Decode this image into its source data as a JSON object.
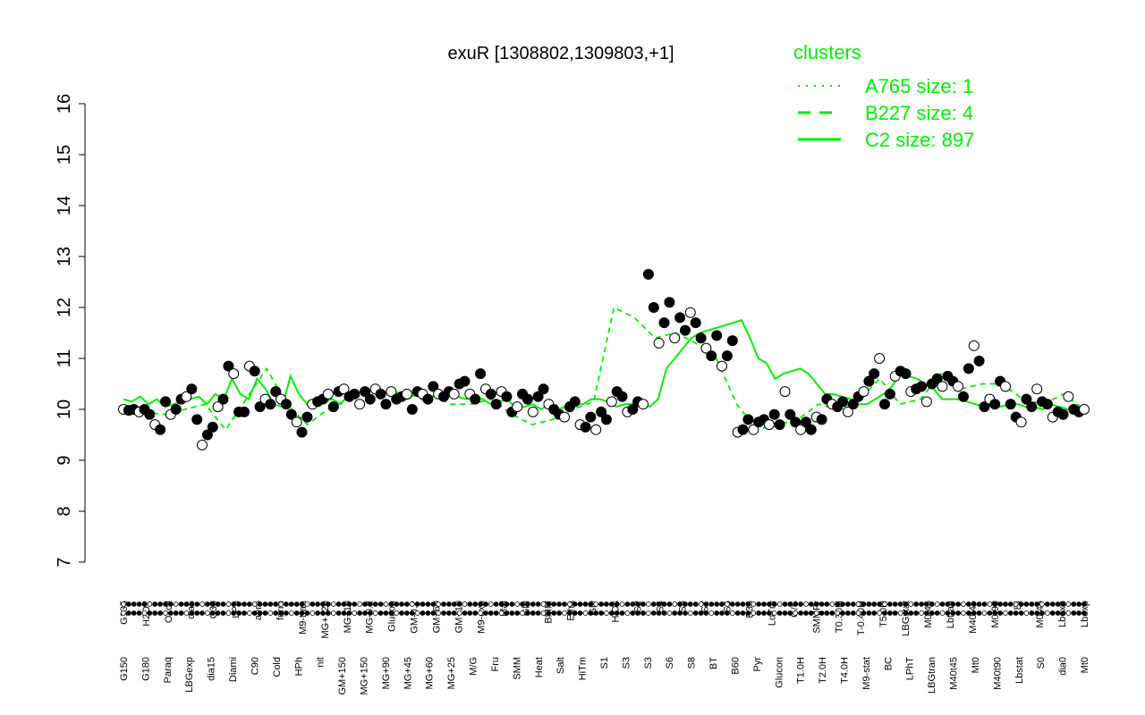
{
  "chart_data": {
    "type": "line",
    "title": "exuR [1308802,1309803,+1]",
    "xlabel": "",
    "ylabel": "",
    "ylim": [
      7,
      16
    ],
    "yticks": [
      7,
      8,
      9,
      10,
      11,
      12,
      13,
      14,
      15,
      16
    ],
    "grid": false,
    "legend": {
      "title": "clusters",
      "position": "top-right",
      "entries": [
        {
          "label": "A765 size: 1",
          "style": "dotted"
        },
        {
          "label": "B227 size: 4",
          "style": "dashed"
        },
        {
          "label": "C2 size: 897",
          "style": "solid"
        }
      ]
    },
    "x_top_labels": [
      "G150",
      "G180",
      "Paraq",
      "LBGexp",
      "dia15",
      "Diami",
      "C90",
      "Cold",
      "HPh",
      "nit",
      "GM+150",
      "MG+150",
      "MG+90",
      "MG+45",
      "MG+60",
      "MG+25",
      "M/G",
      "Fru",
      "SMM",
      "Heat",
      "Salt",
      "HiTm",
      "S1",
      "S3",
      "S3",
      "S6",
      "S8",
      "BT",
      "B60",
      "Pyr",
      "Glucon",
      "T1.0H",
      "T2.0H",
      "T4.0H",
      "M9-stat",
      "BC",
      "LPhT",
      "LBGtran",
      "M40t45",
      "Mt0",
      "M40t90",
      "Lbstat",
      "S0",
      "dia0",
      "Mt0"
    ],
    "x_bottom_labels": [
      "G135",
      "H2O2",
      "Oxctl",
      "dia5",
      "C30",
      "LPh",
      "aero",
      "ferm",
      "M9-tran",
      "MG+120",
      "MG+10",
      "MG-0.2",
      "Glucon",
      "GM-0.2",
      "GM+60",
      "GM+10",
      "M9-exp",
      "Mal",
      "Glu",
      "BMM",
      "Etha",
      "Gly",
      "HiOs",
      "S2",
      "S4",
      "S5",
      "S7",
      "S6",
      "B36",
      "LoTm",
      "G/S",
      "SMMPr",
      "T0.30H",
      "T-0.40H",
      "T5.0H",
      "LBGstat",
      "M0t45",
      "Lbtran",
      "M40t45",
      "M0t90",
      "BI",
      "M0t45",
      "Lbexp",
      "Lbexp"
    ],
    "series": [
      {
        "name": "C2 size: 897",
        "style": "solid",
        "values": [
          10.2,
          10.15,
          10.25,
          10.1,
          10.2,
          10.05,
          10.1,
          10.15,
          10.2,
          10.25,
          10.1,
          10.3,
          10.2,
          10.6,
          10.3,
          10.2,
          10.6,
          10.4,
          10.1,
          10.05,
          10.65,
          10.3,
          10.1,
          10.2,
          10.15,
          10.2,
          10.1,
          10.3,
          10.35,
          10.3,
          10.4,
          10.35,
          10.3,
          10.25,
          10.2,
          10.3,
          10.15,
          10.25,
          10.3,
          10.3,
          10.25,
          10.2,
          10.25,
          10.2,
          10.1,
          10.15,
          10.2,
          10.0,
          10.05,
          10.1,
          10.0,
          10.1,
          10.0,
          10.05,
          10.1,
          10.1,
          10.2,
          10.2,
          10.15,
          10.05,
          10.1,
          10.1,
          10.15,
          10.05,
          10.2,
          10.8,
          11.0,
          11.2,
          11.4,
          11.5,
          11.55,
          11.6,
          11.65,
          11.7,
          11.75,
          11.4,
          11.0,
          10.9,
          10.6,
          10.7,
          10.75,
          10.8,
          10.7,
          10.5,
          10.3,
          10.3,
          10.25,
          10.2,
          10.1,
          10.1,
          10.2,
          10.3,
          10.45,
          10.7,
          10.65,
          10.6,
          10.5,
          10.4,
          10.2,
          10.2,
          10.2,
          10.15,
          10.1,
          10.05,
          10.1,
          10.05,
          10.1,
          10.1,
          10.05,
          10.05,
          10.0,
          10.1,
          10.05,
          10.0,
          10.0,
          10.0
        ]
      },
      {
        "name": "B227 size: 4",
        "style": "dashed",
        "values": [
          10.0,
          9.95,
          9.9,
          10.0,
          10.1,
          9.6,
          10.2,
          10.8,
          10.1,
          9.7,
          10.0,
          10.2,
          10.3,
          10.35,
          10.3,
          10.3,
          10.1,
          10.1,
          10.2,
          9.9,
          9.7,
          9.8,
          10.0,
          10.15,
          12.0,
          11.8,
          11.4,
          11.5,
          11.3,
          11.0,
          10.1,
          9.6,
          9.7,
          9.8,
          10.1,
          10.0,
          10.2,
          10.6,
          10.1,
          10.2,
          10.7,
          10.4,
          10.5,
          10.5,
          10.2,
          10.1,
          10.3,
          10.0
        ]
      }
    ],
    "points": [
      {
        "x": 1,
        "y": 10.0
      },
      {
        "x": 2,
        "y": 9.98
      },
      {
        "x": 3,
        "y": 10.0
      },
      {
        "x": 4,
        "y": 9.95
      },
      {
        "x": 5,
        "y": 10.0
      },
      {
        "x": 6,
        "y": 9.9
      },
      {
        "x": 7,
        "y": 9.7
      },
      {
        "x": 8,
        "y": 9.6
      },
      {
        "x": 9,
        "y": 10.15
      },
      {
        "x": 10,
        "y": 9.9
      },
      {
        "x": 11,
        "y": 10.0
      },
      {
        "x": 12,
        "y": 10.2
      },
      {
        "x": 13,
        "y": 10.25
      },
      {
        "x": 14,
        "y": 10.4
      },
      {
        "x": 15,
        "y": 9.8
      },
      {
        "x": 16,
        "y": 9.3
      },
      {
        "x": 17,
        "y": 9.5
      },
      {
        "x": 18,
        "y": 9.65
      },
      {
        "x": 19,
        "y": 10.05
      },
      {
        "x": 20,
        "y": 10.2
      },
      {
        "x": 21,
        "y": 10.85
      },
      {
        "x": 22,
        "y": 10.7
      },
      {
        "x": 23,
        "y": 9.95
      },
      {
        "x": 24,
        "y": 9.95
      },
      {
        "x": 25,
        "y": 10.85
      },
      {
        "x": 26,
        "y": 10.75
      },
      {
        "x": 27,
        "y": 10.05
      },
      {
        "x": 28,
        "y": 10.2
      },
      {
        "x": 29,
        "y": 10.1
      },
      {
        "x": 30,
        "y": 10.35
      },
      {
        "x": 31,
        "y": 10.2
      },
      {
        "x": 32,
        "y": 10.1
      },
      {
        "x": 33,
        "y": 9.9
      },
      {
        "x": 34,
        "y": 9.75
      },
      {
        "x": 35,
        "y": 9.55
      },
      {
        "x": 36,
        "y": 9.85
      },
      {
        "x": 37,
        "y": 10.1
      },
      {
        "x": 38,
        "y": 10.15
      },
      {
        "x": 39,
        "y": 10.2
      },
      {
        "x": 40,
        "y": 10.3
      },
      {
        "x": 41,
        "y": 10.05
      },
      {
        "x": 42,
        "y": 10.35
      },
      {
        "x": 43,
        "y": 10.4
      },
      {
        "x": 44,
        "y": 10.25
      },
      {
        "x": 45,
        "y": 10.3
      },
      {
        "x": 46,
        "y": 10.1
      },
      {
        "x": 47,
        "y": 10.35
      },
      {
        "x": 48,
        "y": 10.2
      },
      {
        "x": 49,
        "y": 10.4
      },
      {
        "x": 50,
        "y": 10.3
      },
      {
        "x": 51,
        "y": 10.1
      },
      {
        "x": 52,
        "y": 10.35
      },
      {
        "x": 53,
        "y": 10.2
      },
      {
        "x": 54,
        "y": 10.25
      },
      {
        "x": 55,
        "y": 10.3
      },
      {
        "x": 56,
        "y": 10.0
      },
      {
        "x": 57,
        "y": 10.35
      },
      {
        "x": 58,
        "y": 10.3
      },
      {
        "x": 59,
        "y": 10.2
      },
      {
        "x": 60,
        "y": 10.45
      },
      {
        "x": 61,
        "y": 10.3
      },
      {
        "x": 62,
        "y": 10.25
      },
      {
        "x": 63,
        "y": 10.35
      },
      {
        "x": 64,
        "y": 10.3
      },
      {
        "x": 65,
        "y": 10.5
      },
      {
        "x": 66,
        "y": 10.55
      },
      {
        "x": 67,
        "y": 10.3
      },
      {
        "x": 68,
        "y": 10.2
      },
      {
        "x": 69,
        "y": 10.7
      },
      {
        "x": 70,
        "y": 10.4
      },
      {
        "x": 71,
        "y": 10.3
      },
      {
        "x": 72,
        "y": 10.1
      },
      {
        "x": 73,
        "y": 10.35
      },
      {
        "x": 74,
        "y": 10.25
      },
      {
        "x": 75,
        "y": 9.95
      },
      {
        "x": 76,
        "y": 10.05
      },
      {
        "x": 77,
        "y": 10.3
      },
      {
        "x": 78,
        "y": 10.2
      },
      {
        "x": 79,
        "y": 9.95
      },
      {
        "x": 80,
        "y": 10.25
      },
      {
        "x": 81,
        "y": 10.4
      },
      {
        "x": 82,
        "y": 10.1
      },
      {
        "x": 83,
        "y": 10.0
      },
      {
        "x": 84,
        "y": 9.9
      },
      {
        "x": 85,
        "y": 9.85
      },
      {
        "x": 86,
        "y": 10.05
      },
      {
        "x": 87,
        "y": 10.15
      },
      {
        "x": 88,
        "y": 9.7
      },
      {
        "x": 89,
        "y": 9.65
      },
      {
        "x": 90,
        "y": 9.85
      },
      {
        "x": 91,
        "y": 9.6
      },
      {
        "x": 92,
        "y": 9.95
      },
      {
        "x": 93,
        "y": 9.8
      },
      {
        "x": 94,
        "y": 10.15
      },
      {
        "x": 95,
        "y": 10.35
      },
      {
        "x": 96,
        "y": 10.25
      },
      {
        "x": 97,
        "y": 9.95
      },
      {
        "x": 98,
        "y": 10.0
      },
      {
        "x": 99,
        "y": 10.15
      },
      {
        "x": 100,
        "y": 10.1
      },
      {
        "x": 101,
        "y": 12.65
      },
      {
        "x": 102,
        "y": 12.0
      },
      {
        "x": 103,
        "y": 11.3
      },
      {
        "x": 104,
        "y": 11.7
      },
      {
        "x": 105,
        "y": 12.1
      },
      {
        "x": 106,
        "y": 11.4
      },
      {
        "x": 107,
        "y": 11.8
      },
      {
        "x": 108,
        "y": 11.55
      },
      {
        "x": 109,
        "y": 11.9
      },
      {
        "x": 110,
        "y": 11.7
      },
      {
        "x": 111,
        "y": 11.4
      },
      {
        "x": 112,
        "y": 11.2
      },
      {
        "x": 113,
        "y": 11.05
      },
      {
        "x": 114,
        "y": 11.45
      },
      {
        "x": 115,
        "y": 10.85
      },
      {
        "x": 116,
        "y": 11.05
      },
      {
        "x": 117,
        "y": 11.35
      },
      {
        "x": 118,
        "y": 9.55
      },
      {
        "x": 119,
        "y": 9.6
      },
      {
        "x": 120,
        "y": 9.8
      },
      {
        "x": 121,
        "y": 9.6
      },
      {
        "x": 122,
        "y": 9.75
      },
      {
        "x": 123,
        "y": 9.8
      },
      {
        "x": 124,
        "y": 9.7
      },
      {
        "x": 125,
        "y": 9.9
      },
      {
        "x": 126,
        "y": 9.7
      },
      {
        "x": 127,
        "y": 10.35
      },
      {
        "x": 128,
        "y": 9.9
      },
      {
        "x": 129,
        "y": 9.75
      },
      {
        "x": 130,
        "y": 9.6
      },
      {
        "x": 131,
        "y": 9.75
      },
      {
        "x": 132,
        "y": 9.6
      },
      {
        "x": 133,
        "y": 9.85
      },
      {
        "x": 134,
        "y": 9.8
      },
      {
        "x": 135,
        "y": 10.2
      },
      {
        "x": 136,
        "y": 10.1
      },
      {
        "x": 137,
        "y": 10.05
      },
      {
        "x": 138,
        "y": 10.15
      },
      {
        "x": 139,
        "y": 9.95
      },
      {
        "x": 140,
        "y": 10.1
      },
      {
        "x": 141,
        "y": 10.25
      },
      {
        "x": 142,
        "y": 10.35
      },
      {
        "x": 143,
        "y": 10.55
      },
      {
        "x": 144,
        "y": 10.7
      },
      {
        "x": 145,
        "y": 11.0
      },
      {
        "x": 146,
        "y": 10.1
      },
      {
        "x": 147,
        "y": 10.3
      },
      {
        "x": 148,
        "y": 10.65
      },
      {
        "x": 149,
        "y": 10.75
      },
      {
        "x": 150,
        "y": 10.7
      },
      {
        "x": 151,
        "y": 10.35
      },
      {
        "x": 152,
        "y": 10.4
      },
      {
        "x": 153,
        "y": 10.45
      },
      {
        "x": 154,
        "y": 10.15
      },
      {
        "x": 155,
        "y": 10.5
      },
      {
        "x": 156,
        "y": 10.6
      },
      {
        "x": 157,
        "y": 10.45
      },
      {
        "x": 158,
        "y": 10.65
      },
      {
        "x": 159,
        "y": 10.55
      },
      {
        "x": 160,
        "y": 10.45
      },
      {
        "x": 161,
        "y": 10.25
      },
      {
        "x": 162,
        "y": 10.8
      },
      {
        "x": 163,
        "y": 11.25
      },
      {
        "x": 164,
        "y": 10.95
      },
      {
        "x": 165,
        "y": 10.05
      },
      {
        "x": 166,
        "y": 10.2
      },
      {
        "x": 167,
        "y": 10.1
      },
      {
        "x": 168,
        "y": 10.55
      },
      {
        "x": 169,
        "y": 10.45
      },
      {
        "x": 170,
        "y": 10.1
      },
      {
        "x": 171,
        "y": 9.85
      },
      {
        "x": 172,
        "y": 9.75
      },
      {
        "x": 173,
        "y": 10.2
      },
      {
        "x": 174,
        "y": 10.05
      },
      {
        "x": 175,
        "y": 10.4
      },
      {
        "x": 176,
        "y": 10.15
      },
      {
        "x": 177,
        "y": 10.1
      },
      {
        "x": 178,
        "y": 9.85
      },
      {
        "x": 179,
        "y": 9.95
      },
      {
        "x": 180,
        "y": 9.9
      },
      {
        "x": 181,
        "y": 10.25
      },
      {
        "x": 182,
        "y": 10.0
      },
      {
        "x": 183,
        "y": 9.95
      },
      {
        "x": 184,
        "y": 10.0
      }
    ]
  }
}
